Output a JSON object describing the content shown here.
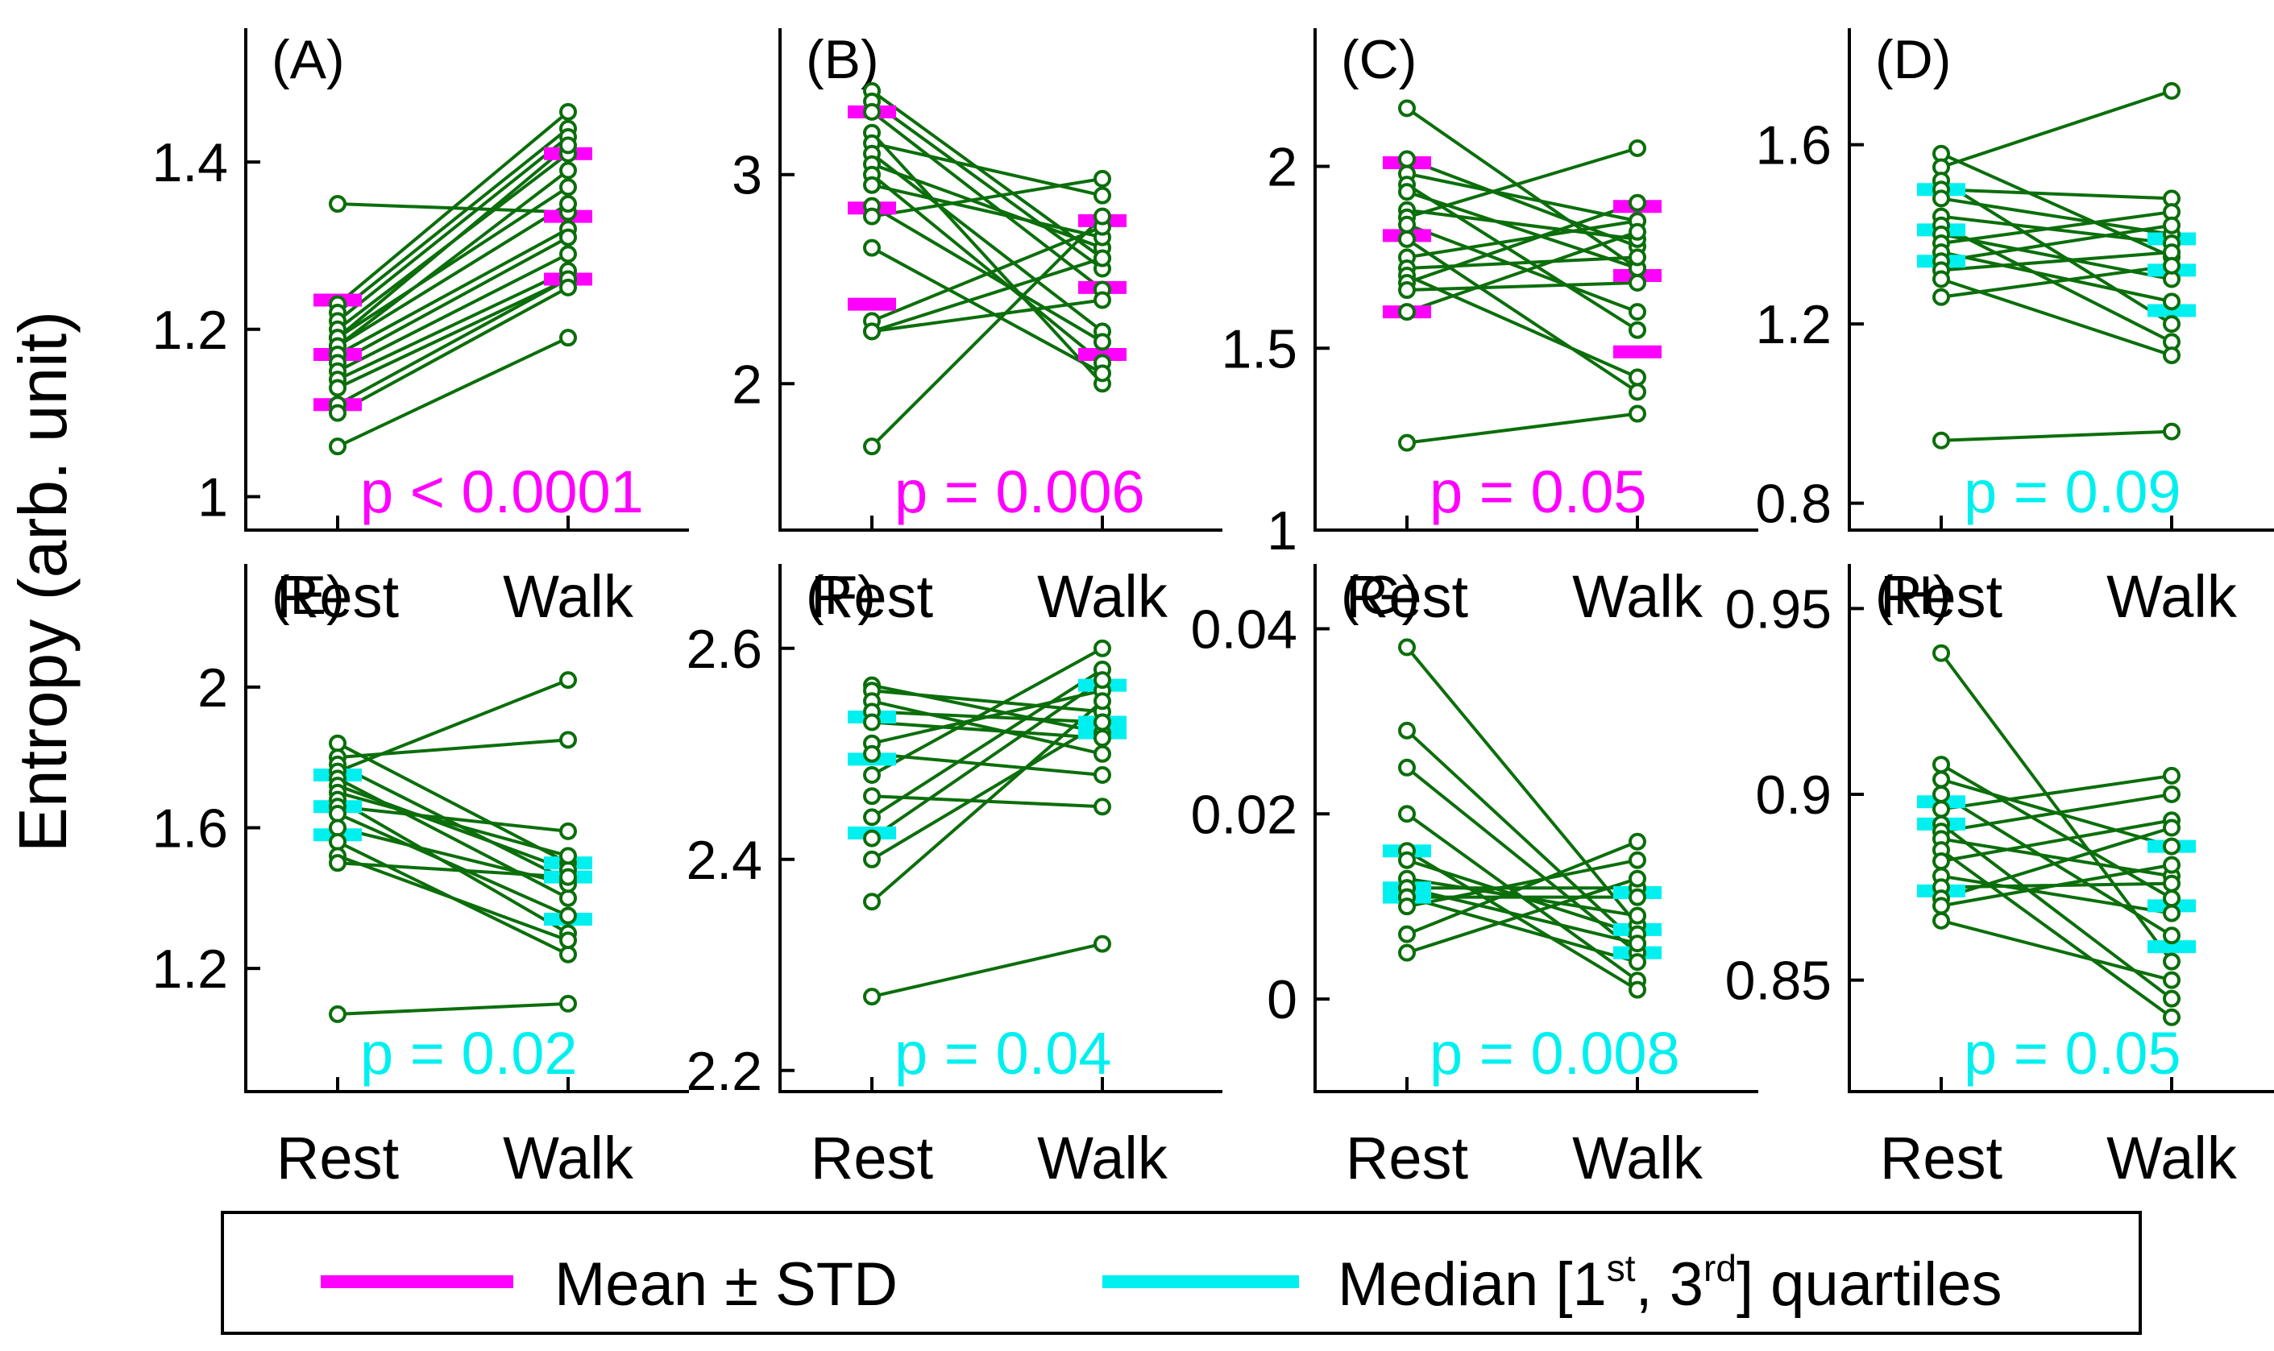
{
  "ylabel": "Entropy (arb. unit)",
  "colors": {
    "data": "#0b6e0b",
    "mean": "#ff00ff",
    "median": "#00f0f0",
    "axis": "#000000"
  },
  "legend": {
    "mean_label": "Mean ± STD",
    "median_label_prefix": "Median [1",
    "median_sup1": "st",
    "median_label_mid": ", 3",
    "median_sup2": "rd",
    "median_label_suffix": "] quartiles"
  },
  "chart_data": [
    {
      "type": "paired-line",
      "panel": "(A)",
      "categories": [
        "Rest",
        "Walk"
      ],
      "ylim": [
        0.96,
        1.56
      ],
      "yticks": [
        1,
        1.2,
        1.4
      ],
      "ytick_labels": [
        "1",
        "1.2",
        "1.4"
      ],
      "rest": [
        1.35,
        1.23,
        1.22,
        1.21,
        1.2,
        1.19,
        1.19,
        1.18,
        1.18,
        1.17,
        1.16,
        1.15,
        1.14,
        1.13,
        1.11,
        1.1,
        1.06
      ],
      "walk": [
        1.34,
        1.46,
        1.44,
        1.43,
        1.41,
        1.42,
        1.37,
        1.39,
        1.35,
        1.32,
        1.31,
        1.29,
        1.27,
        1.26,
        1.26,
        1.25,
        1.19
      ],
      "summary": {
        "stat": "mean",
        "rest": [
          1.11,
          1.17,
          1.235
        ],
        "walk": [
          1.26,
          1.335,
          1.41
        ]
      },
      "pvalue": "p < 0.0001",
      "pcolor": "mean"
    },
    {
      "type": "paired-line",
      "panel": "(B)",
      "categories": [
        "Rest",
        "Walk"
      ],
      "ylim": [
        1.3,
        3.7
      ],
      "yticks": [
        2,
        3
      ],
      "ytick_labels": [
        "2",
        "3"
      ],
      "rest": [
        3.4,
        3.35,
        3.3,
        3.2,
        3.15,
        3.1,
        3.05,
        3.0,
        2.95,
        2.85,
        2.8,
        2.65,
        2.3,
        2.25,
        2.25,
        1.7
      ],
      "walk": [
        2.6,
        2.55,
        2.45,
        2.0,
        2.9,
        2.25,
        2.65,
        2.1,
        2.7,
        2.2,
        2.98,
        2.05,
        2.75,
        2.4,
        2.6,
        2.8
      ],
      "summary": {
        "stat": "mean",
        "rest": [
          2.38,
          2.84,
          3.3
        ],
        "walk": [
          2.14,
          2.46,
          2.78
        ]
      },
      "pvalue": "p = 0.006",
      "pcolor": "mean"
    },
    {
      "type": "paired-line",
      "panel": "(C)",
      "categories": [
        "Rest",
        "Walk"
      ],
      "ylim": [
        1.0,
        2.38
      ],
      "yticks": [
        1,
        1.5,
        2
      ],
      "ytick_labels": [
        "1",
        "1.5",
        "2"
      ],
      "rest": [
        2.16,
        2.02,
        1.98,
        1.95,
        1.93,
        1.88,
        1.86,
        1.84,
        1.8,
        1.75,
        1.72,
        1.7,
        1.68,
        1.66,
        1.6,
        1.24
      ],
      "walk": [
        1.72,
        1.78,
        1.85,
        1.55,
        1.72,
        1.8,
        2.05,
        1.6,
        1.38,
        1.85,
        1.75,
        1.42,
        1.9,
        1.68,
        1.82,
        1.32
      ],
      "summary": {
        "stat": "mean",
        "rest": [
          1.6,
          1.81,
          2.01
        ],
        "walk": [
          1.49,
          1.7,
          1.89
        ]
      },
      "pvalue": "p = 0.05",
      "pcolor": "mean"
    },
    {
      "type": "paired-line",
      "panel": "(D)",
      "categories": [
        "Rest",
        "Walk"
      ],
      "ylim": [
        0.74,
        1.86
      ],
      "yticks": [
        0.8,
        1.2,
        1.6
      ],
      "ytick_labels": [
        "0.8",
        "1.2",
        "1.6"
      ],
      "rest": [
        1.58,
        1.55,
        1.52,
        1.5,
        1.48,
        1.44,
        1.42,
        1.4,
        1.38,
        1.36,
        1.34,
        1.32,
        1.3,
        1.26,
        0.94
      ],
      "walk": [
        1.35,
        1.72,
        1.2,
        1.48,
        1.4,
        1.38,
        1.16,
        1.3,
        1.45,
        1.25,
        1.42,
        1.36,
        1.13,
        1.33,
        0.96
      ],
      "summary": {
        "stat": "median",
        "rest": [
          1.34,
          1.41,
          1.5
        ],
        "walk": [
          1.23,
          1.32,
          1.39
        ]
      },
      "pvalue": "p = 0.09",
      "pcolor": "median"
    },
    {
      "type": "paired-line",
      "panel": "(E)",
      "categories": [
        "Rest",
        "Walk"
      ],
      "ylim": [
        0.85,
        2.35
      ],
      "yticks": [
        1.2,
        1.6,
        2.0
      ],
      "ytick_labels": [
        "1.2",
        "1.6",
        "2"
      ],
      "rest": [
        1.84,
        1.8,
        1.78,
        1.76,
        1.74,
        1.72,
        1.7,
        1.68,
        1.66,
        1.64,
        1.6,
        1.56,
        1.52,
        1.5,
        1.07
      ],
      "walk": [
        1.5,
        1.85,
        1.45,
        2.02,
        1.4,
        1.48,
        1.52,
        1.3,
        1.59,
        1.35,
        1.44,
        1.24,
        1.28,
        1.46,
        1.1
      ],
      "summary": {
        "stat": "median",
        "rest": [
          1.58,
          1.66,
          1.75
        ],
        "walk": [
          1.34,
          1.46,
          1.5
        ]
      },
      "pvalue": "p = 0.02",
      "pcolor": "median"
    },
    {
      "type": "paired-line",
      "panel": "(F)",
      "categories": [
        "Rest",
        "Walk"
      ],
      "ylim": [
        2.18,
        2.68
      ],
      "yticks": [
        2.2,
        2.4,
        2.6
      ],
      "ytick_labels": [
        "2.2",
        "2.4",
        "2.6"
      ],
      "rest": [
        2.565,
        2.56,
        2.55,
        2.54,
        2.53,
        2.51,
        2.5,
        2.48,
        2.46,
        2.44,
        2.42,
        2.4,
        2.36,
        2.27
      ],
      "walk": [
        2.52,
        2.54,
        2.5,
        2.53,
        2.515,
        2.56,
        2.48,
        2.6,
        2.45,
        2.58,
        2.57,
        2.53,
        2.55,
        2.32
      ],
      "summary": {
        "stat": "median",
        "rest": [
          2.425,
          2.495,
          2.535
        ],
        "walk": [
          2.52,
          2.53,
          2.565
        ]
      },
      "pvalue": "p = 0.04",
      "pcolor": "median"
    },
    {
      "type": "paired-line",
      "panel": "(G)",
      "categories": [
        "Rest",
        "Walk"
      ],
      "ylim": [
        -0.01,
        0.047
      ],
      "yticks": [
        0,
        0.02,
        0.04
      ],
      "ytick_labels": [
        "0",
        "0.02",
        "0.04"
      ],
      "rest": [
        0.038,
        0.029,
        0.025,
        0.02,
        0.016,
        0.015,
        0.013,
        0.012,
        0.012,
        0.011,
        0.011,
        0.01,
        0.007,
        0.005
      ],
      "walk": [
        0.008,
        0.006,
        0.005,
        0.002,
        0.001,
        0.007,
        0.009,
        0.006,
        0.012,
        0.004,
        0.011,
        0.015,
        0.017,
        0.013
      ],
      "summary": {
        "stat": "median",
        "rest": [
          0.011,
          0.012,
          0.016
        ],
        "walk": [
          0.005,
          0.0075,
          0.0115
        ]
      },
      "pvalue": "p = 0.008",
      "pcolor": "median"
    },
    {
      "type": "paired-line",
      "panel": "(H)",
      "categories": [
        "Rest",
        "Walk"
      ],
      "ylim": [
        0.82,
        0.962
      ],
      "yticks": [
        0.85,
        0.9,
        0.95
      ],
      "ytick_labels": [
        "0.85",
        "0.9",
        "0.95"
      ],
      "rest": [
        0.938,
        0.908,
        0.904,
        0.9,
        0.896,
        0.892,
        0.89,
        0.888,
        0.885,
        0.882,
        0.878,
        0.875,
        0.872,
        0.87,
        0.866
      ],
      "walk": [
        0.855,
        0.872,
        0.886,
        0.862,
        0.905,
        0.845,
        0.9,
        0.878,
        0.84,
        0.893,
        0.868,
        0.876,
        0.891,
        0.881,
        0.85
      ],
      "summary": {
        "stat": "median",
        "rest": [
          0.874,
          0.892,
          0.898
        ],
        "walk": [
          0.859,
          0.87,
          0.886
        ]
      },
      "pvalue": "p = 0.05",
      "pcolor": "median"
    }
  ]
}
